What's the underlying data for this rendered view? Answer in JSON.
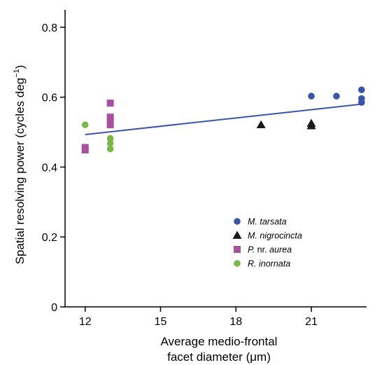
{
  "chart_data": {
    "type": "scatter",
    "xlabel_line1": "Average medio-frontal",
    "xlabel_line2_prefix": "facet diameter (",
    "xlabel_line2_unit": "μm",
    "xlabel_line2_suffix": ")",
    "ylabel_main": "Spatial resolving power (cycles deg",
    "ylabel_sup": "−1",
    "ylabel_close": ")",
    "xlim": [
      11.2,
      23.2
    ],
    "ylim": [
      0,
      0.85
    ],
    "x_ticks": [
      12,
      15,
      18,
      21
    ],
    "x_tick_labels": [
      "12",
      "15",
      "18",
      "21"
    ],
    "y_ticks": [
      0,
      0.2,
      0.4,
      0.6,
      0.8
    ],
    "y_tick_labels": [
      "0",
      "0.2",
      "0.4",
      "0.6",
      "0.8"
    ],
    "grid": false,
    "legend_placement": "lower-right",
    "series": [
      {
        "name_italic": "M. tarsata",
        "name_plain_mid": "",
        "name_italic_end": "",
        "marker": "circle",
        "color": "#3a55a8",
        "points": [
          [
            21.0,
            0.603
          ],
          [
            22.0,
            0.603
          ],
          [
            23.0,
            0.621
          ],
          [
            23.0,
            0.596
          ],
          [
            23.0,
            0.585
          ]
        ]
      },
      {
        "name_italic": "M. nigrocincta",
        "name_plain_mid": "",
        "name_italic_end": "",
        "marker": "triangle",
        "color": "#1a1a1a",
        "points": [
          [
            19.0,
            0.521
          ],
          [
            21.0,
            0.525
          ],
          [
            21.0,
            0.518
          ]
        ]
      },
      {
        "name_italic": "P.",
        "name_plain_mid": " nr. ",
        "name_italic_end": "aurea",
        "marker": "square",
        "color": "#a8519e",
        "points": [
          [
            12.0,
            0.456
          ],
          [
            12.0,
            0.449
          ],
          [
            13.0,
            0.583
          ],
          [
            13.0,
            0.543
          ],
          [
            13.0,
            0.535
          ],
          [
            13.0,
            0.521
          ]
        ]
      },
      {
        "name_italic": "R. inornata",
        "name_plain_mid": "",
        "name_italic_end": "",
        "marker": "circle",
        "color": "#7ab648",
        "points": [
          [
            12.0,
            0.521
          ],
          [
            13.0,
            0.482
          ],
          [
            13.0,
            0.468
          ],
          [
            13.0,
            0.452
          ]
        ]
      }
    ],
    "trendline": {
      "color": "#3a55a8",
      "x": [
        12.0,
        23.0
      ],
      "y": [
        0.493,
        0.58
      ]
    }
  }
}
